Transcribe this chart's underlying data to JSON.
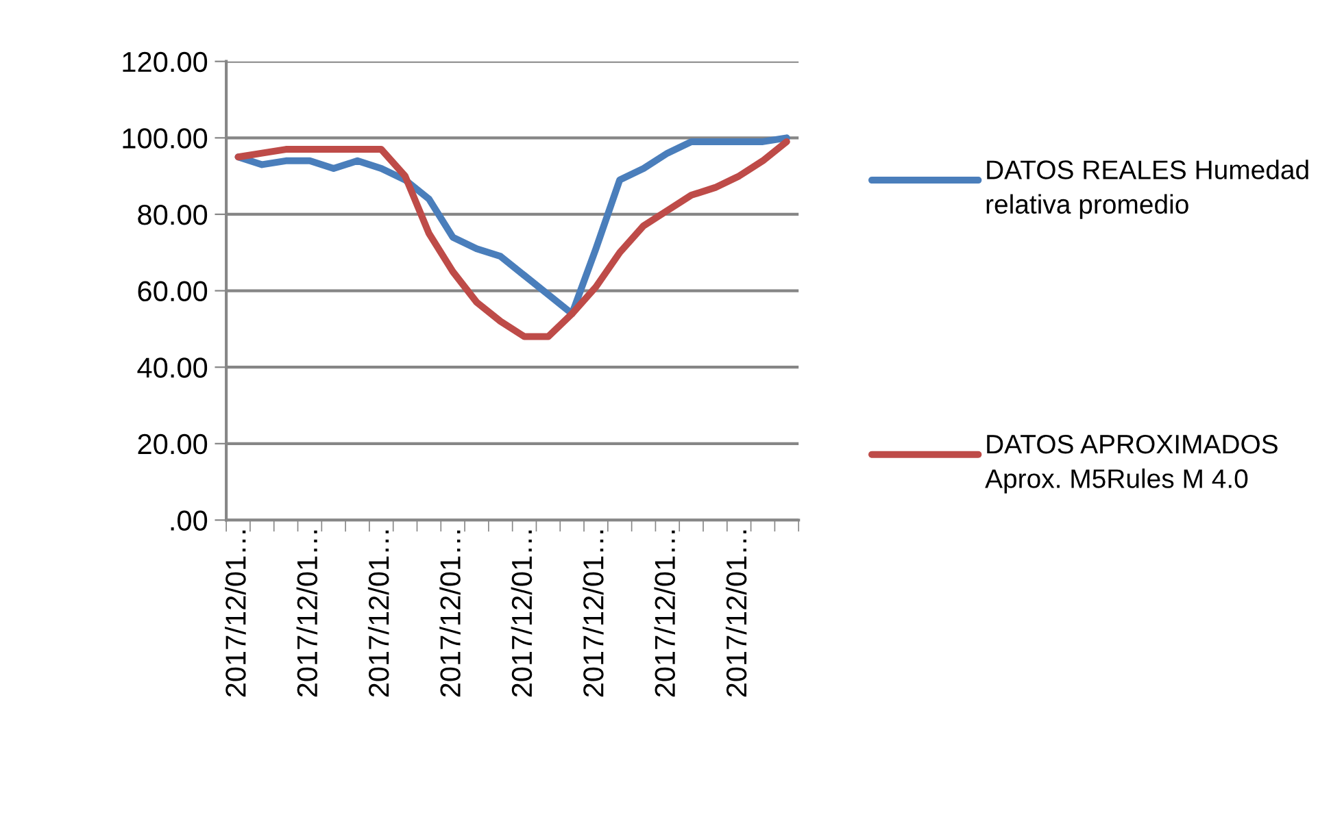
{
  "chart_data": {
    "type": "line",
    "categories": [
      "2017/12/01…",
      null,
      null,
      "2017/12/01…",
      null,
      null,
      "2017/12/01…",
      null,
      null,
      "2017/12/01…",
      null,
      null,
      "2017/12/01…",
      null,
      null,
      "2017/12/01…",
      null,
      null,
      "2017/12/01…",
      null,
      null,
      "2017/12/01…",
      null,
      null
    ],
    "series": [
      {
        "name": "DATOS REALES Humedad relativa promedio",
        "color": "#4a7ebb",
        "values": [
          95,
          93,
          94,
          94,
          92,
          94,
          92,
          89,
          84,
          74,
          71,
          69,
          64,
          59,
          54,
          71,
          89,
          92,
          96,
          99,
          99,
          99,
          99,
          100
        ]
      },
      {
        "name": "DATOS APROXIMADOS Aprox. M5Rules M 4.0",
        "color": "#be4b48",
        "values": [
          95,
          96,
          97,
          97,
          97,
          97,
          97,
          90,
          75,
          65,
          57,
          52,
          48,
          48,
          54,
          61,
          70,
          77,
          81,
          85,
          87,
          90,
          94,
          99
        ]
      }
    ],
    "ylim": [
      0,
      120
    ],
    "yticks": [
      {
        "value": 0,
        "label": ".00"
      },
      {
        "value": 20,
        "label": "20.00"
      },
      {
        "value": 40,
        "label": "40.00"
      },
      {
        "value": 60,
        "label": "60.00"
      },
      {
        "value": 80,
        "label": "80.00"
      },
      {
        "value": 100,
        "label": "100.00"
      },
      {
        "value": 120,
        "label": "120.00"
      }
    ],
    "grid": "y",
    "legend": "right",
    "marker": "none",
    "line_style": "solid"
  }
}
